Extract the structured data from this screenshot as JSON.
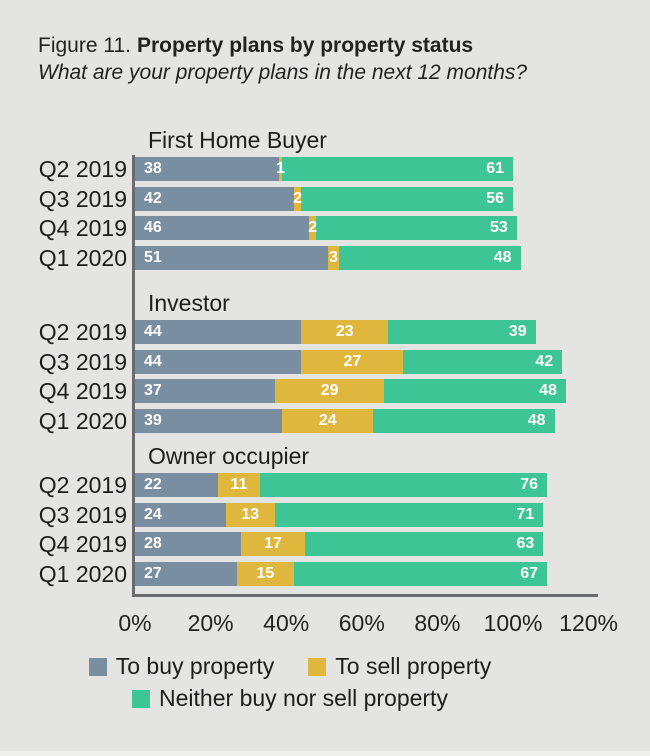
{
  "figure": {
    "label": "Figure 11.",
    "title": "Property plans by property status",
    "subtitle": "What are your property plans in the next 12 months?"
  },
  "chart_data": {
    "type": "bar",
    "orientation": "horizontal",
    "stacked": true,
    "title": "Property plans by property status",
    "xlabel": "",
    "ylabel": "",
    "x_axis": {
      "min": 0,
      "max": 120,
      "unit": "%",
      "ticks": [
        "0%",
        "20%",
        "40%",
        "60%",
        "80%",
        "100%",
        "120%"
      ]
    },
    "series_names": [
      "To buy property",
      "To sell property",
      "Neither buy nor sell property"
    ],
    "colors": [
      "#7a8ea2",
      "#e0b73d",
      "#3ec596"
    ],
    "groups": [
      {
        "label": "First Home Buyer",
        "rows": [
          {
            "period": "Q2 2019",
            "values": [
              38,
              1,
              61
            ]
          },
          {
            "period": "Q3 2019",
            "values": [
              42,
              2,
              56
            ]
          },
          {
            "period": "Q4 2019",
            "values": [
              46,
              2,
              53
            ]
          },
          {
            "period": "Q1 2020",
            "values": [
              51,
              3,
              48
            ]
          }
        ]
      },
      {
        "label": "Investor",
        "rows": [
          {
            "period": "Q2 2019",
            "values": [
              44,
              23,
              39
            ]
          },
          {
            "period": "Q3 2019",
            "values": [
              44,
              27,
              42
            ]
          },
          {
            "period": "Q4 2019",
            "values": [
              37,
              29,
              48
            ]
          },
          {
            "period": "Q1 2020",
            "values": [
              39,
              24,
              48
            ]
          }
        ]
      },
      {
        "label": "Owner occupier",
        "rows": [
          {
            "period": "Q2 2019",
            "values": [
              22,
              11,
              76
            ]
          },
          {
            "period": "Q3 2019",
            "values": [
              24,
              13,
              71
            ]
          },
          {
            "period": "Q4 2019",
            "values": [
              28,
              17,
              63
            ]
          },
          {
            "period": "Q1 2020",
            "values": [
              27,
              15,
              67
            ]
          }
        ]
      }
    ],
    "legend": [
      {
        "name": "To buy property",
        "color": "#7a8ea2"
      },
      {
        "name": "To sell property",
        "color": "#e0b73d"
      },
      {
        "name": "Neither buy nor sell property",
        "color": "#3ec596"
      }
    ]
  }
}
